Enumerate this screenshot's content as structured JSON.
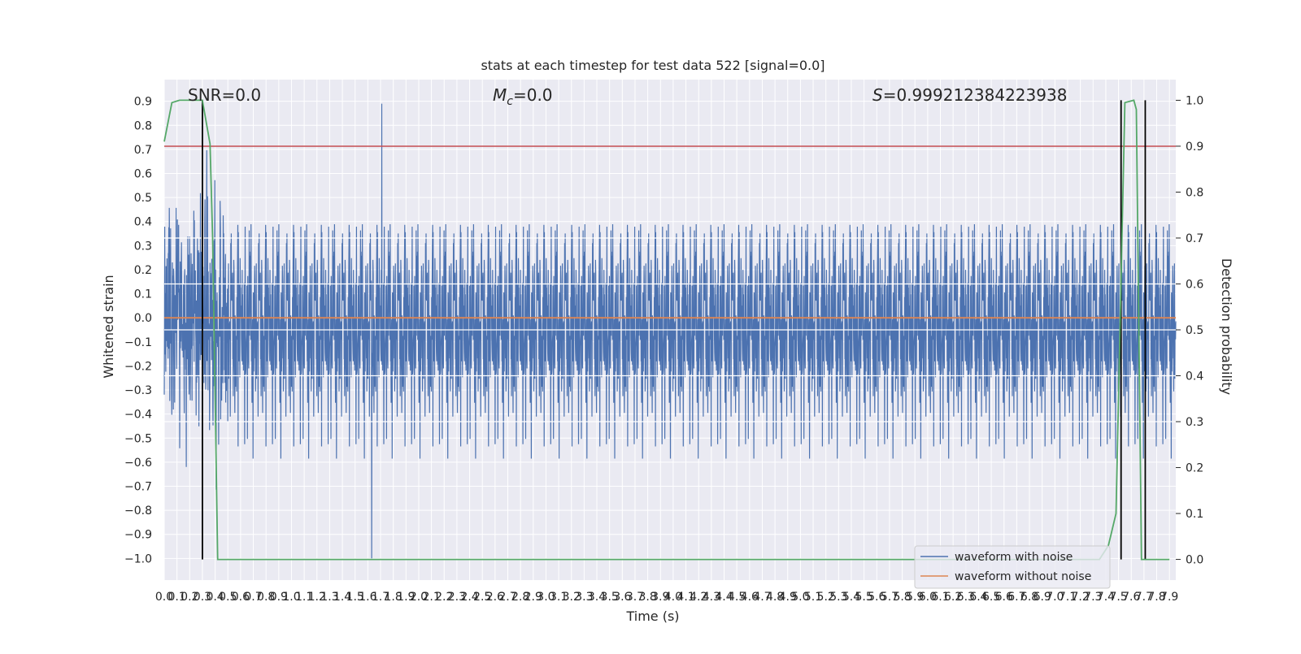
{
  "chart_data": {
    "type": "line",
    "title": "stats at each timestep for test data 522 [signal=0.0]",
    "xlabel": "Time (s)",
    "ylabel": "Whitened strain",
    "y2label": "Detection probability",
    "xlim": [
      0.0,
      7.95
    ],
    "ylim": [
      -1.09,
      0.99
    ],
    "y2lim": [
      -0.045,
      1.045
    ],
    "x_ticks": [
      "0.0",
      "0.1",
      "0.2",
      "0.3",
      "0.4",
      "0.5",
      "0.6",
      "0.7",
      "0.8",
      "0.9",
      "1.0",
      "1.1",
      "1.2",
      "1.3",
      "1.4",
      "1.5",
      "1.6",
      "1.7",
      "1.8",
      "1.9",
      "2.0",
      "2.1",
      "2.2",
      "2.3",
      "2.4",
      "2.5",
      "2.6",
      "2.7",
      "2.8",
      "2.9",
      "3.0",
      "3.1",
      "3.2",
      "3.3",
      "3.4",
      "3.5",
      "3.6",
      "3.7",
      "3.8",
      "3.9",
      "4.0",
      "4.1",
      "4.2",
      "4.3",
      "4.4",
      "4.5",
      "4.6",
      "4.7",
      "4.8",
      "4.9",
      "5.0",
      "5.1",
      "5.2",
      "5.3",
      "5.4",
      "5.5",
      "5.6",
      "5.7",
      "5.8",
      "5.9",
      "6.0",
      "6.1",
      "6.2",
      "6.3",
      "6.4",
      "6.5",
      "6.6",
      "6.7",
      "6.8",
      "6.9",
      "7.0",
      "7.1",
      "7.2",
      "7.3",
      "7.4",
      "7.5",
      "7.6",
      "7.7",
      "7.8",
      "7.9"
    ],
    "y_ticks": [
      "0.9",
      "0.8",
      "0.7",
      "0.6",
      "0.5",
      "0.4",
      "0.3",
      "0.2",
      "0.1",
      "0.0",
      "−0.1",
      "−0.2",
      "−0.3",
      "−0.4",
      "−0.5",
      "−0.6",
      "−0.7",
      "−0.8",
      "−0.9",
      "−1.0"
    ],
    "y2_ticks": [
      "1.0",
      "0.9",
      "0.8",
      "0.7",
      "0.6",
      "0.5",
      "0.4",
      "0.3",
      "0.2",
      "0.1",
      "0.0"
    ],
    "annotations": {
      "snr": "SNR=0.0",
      "mc_symbol": "M",
      "mc_sub": "c",
      "mc_value": "=0.0",
      "s_symbol": "S",
      "s_value": "=0.999212384223938"
    },
    "series": [
      {
        "name": "waveform with noise",
        "color": "#4c72b0",
        "amplitude": 0.42,
        "seed": 522
      },
      {
        "name": "waveform without noise",
        "color": "#dd8452",
        "constant": 0.0
      }
    ],
    "detection_probability": {
      "color": "#55a868",
      "x": [
        0.0,
        0.06,
        0.12,
        0.3,
        0.36,
        0.38,
        0.42,
        0.5,
        1.0,
        2.0,
        3.0,
        4.0,
        5.0,
        6.0,
        7.0,
        7.35,
        7.42,
        7.48,
        7.55,
        7.62,
        7.64,
        7.68,
        7.75,
        7.9
      ],
      "y": [
        0.91,
        0.995,
        1.0,
        1.0,
        0.905,
        0.7,
        0.0,
        0.0,
        0.0,
        0.0,
        0.0,
        0.0,
        0.0,
        0.0,
        0.0,
        0.0,
        0.03,
        0.1,
        0.995,
        1.0,
        0.98,
        0.0,
        0.0,
        0.0
      ]
    },
    "threshold": {
      "value": 0.9,
      "axis": "y2",
      "color": "#c44e52"
    },
    "event_markers": {
      "color": "#000000",
      "x": [
        0.3,
        7.52,
        7.71
      ],
      "y2_range": [
        0.0,
        1.0
      ]
    },
    "white_hlines_y2": [
      0.3,
      0.4,
      0.5,
      0.6,
      0.7
    ],
    "big_spikes": [
      {
        "x": 1.71,
        "y": 0.89
      },
      {
        "x": 1.63,
        "y": -1.0
      }
    ],
    "legend": {
      "position": "lower-right"
    },
    "grid": true
  }
}
